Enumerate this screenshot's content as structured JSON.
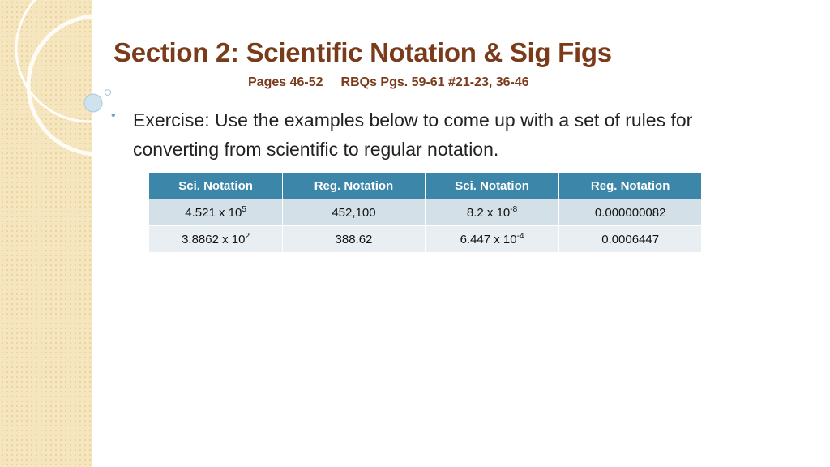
{
  "slide": {
    "title": "Section 2: Scientific Notation & Sig Figs",
    "subtitle": [
      "Pages 46-52",
      "RBQs Pgs. 59-61 #21-23, 36-46"
    ],
    "bullet": "Exercise: Use the examples below to come up with a set of rules for converting from scientific to regular notation.",
    "table": {
      "header": [
        "Sci. Notation",
        "Reg. Notation",
        "Sci. Notation",
        "Reg. Notation"
      ],
      "rows": [
        [
          {
            "text": "4.521 x 10",
            "sup": "5"
          },
          {
            "text": "452,100"
          },
          {
            "text": "8.2 x 10",
            "sup": "-8"
          },
          {
            "text": "0.000000082"
          }
        ],
        [
          {
            "text": "3.8862 x 10",
            "sup": "2"
          },
          {
            "text": "388.62"
          },
          {
            "text": "6.447 x 10",
            "sup": "-4"
          },
          {
            "text": "0.0006447"
          }
        ]
      ]
    }
  }
}
